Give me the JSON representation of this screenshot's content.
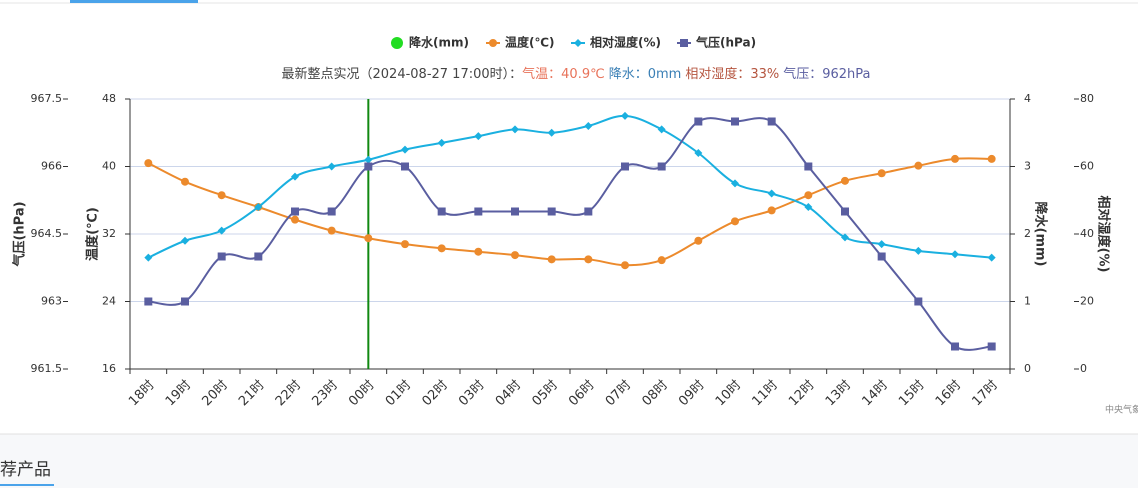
{
  "chart_data": {
    "type": "line",
    "legend": [
      "降水(mm)",
      "温度(℃)",
      "相对湿度(%)",
      "气压(hPa)"
    ],
    "subtitle": {
      "prefix": "最新整点实况（2024-08-27 17:00时）：",
      "temp": "气温：40.9℃",
      "precip": "降水：0mm",
      "humidity": "相对湿度：33%",
      "pressure": "气压：962hPa"
    },
    "categories": [
      "18时",
      "19时",
      "20时",
      "21时",
      "22时",
      "23时",
      "00时",
      "01时",
      "02时",
      "03时",
      "04时",
      "05时",
      "06时",
      "07时",
      "08时",
      "09时",
      "10时",
      "11时",
      "12时",
      "13时",
      "14时",
      "15时",
      "16时",
      "17时"
    ],
    "series": [
      {
        "name": "降水(mm)",
        "color": "#22dd22",
        "axis": "y2",
        "values": [
          0,
          0,
          0,
          0,
          0,
          0,
          0,
          0,
          0,
          0,
          0,
          0,
          0,
          0,
          0,
          0,
          0,
          0,
          0,
          0,
          0,
          0,
          0,
          0
        ]
      },
      {
        "name": "温度(℃)",
        "color": "#ec8a2c",
        "axis": "y",
        "values": [
          40.4,
          38.2,
          36.6,
          35.2,
          33.7,
          32.4,
          31.5,
          30.8,
          30.3,
          29.9,
          29.5,
          29.0,
          29.0,
          28.3,
          28.9,
          31.2,
          33.5,
          34.8,
          36.6,
          38.3,
          39.2,
          40.1,
          40.9,
          40.9
        ]
      },
      {
        "name": "相对湿度(%)",
        "color": "#1ab0e0",
        "axis": "y3",
        "values": [
          33,
          38,
          41,
          48,
          57,
          60,
          62,
          65,
          67,
          69,
          71,
          70,
          72,
          75,
          71,
          64,
          55,
          52,
          48,
          39,
          37,
          35,
          34,
          33
        ]
      },
      {
        "name": "气压(hPa)",
        "color": "#5a5ea0",
        "axis": "y4",
        "values": [
          963,
          963,
          964,
          964,
          965,
          965,
          966,
          966,
          965,
          965,
          965,
          965,
          965,
          966,
          966,
          967,
          967,
          967,
          966,
          965,
          964,
          963,
          962,
          962
        ]
      }
    ],
    "ylabel": "温度(℃)",
    "ylim": [
      16,
      48
    ],
    "yticks": [
      16,
      24,
      32,
      40,
      48
    ],
    "y2label": "降水(mm)",
    "y2lim": [
      0,
      4
    ],
    "y2ticks": [
      0,
      1,
      2,
      3,
      4
    ],
    "y3label": "相对湿度(%)",
    "y3lim": [
      0,
      80
    ],
    "y3ticks": [
      0,
      20,
      40,
      60,
      80
    ],
    "y4label": "气压(hPa)",
    "y4lim": [
      961.5,
      967.5
    ],
    "y4ticks": [
      961.5,
      963,
      964.5,
      966,
      967.5
    ],
    "grid": true,
    "credit": "中央气象",
    "footer": "荐产品"
  }
}
